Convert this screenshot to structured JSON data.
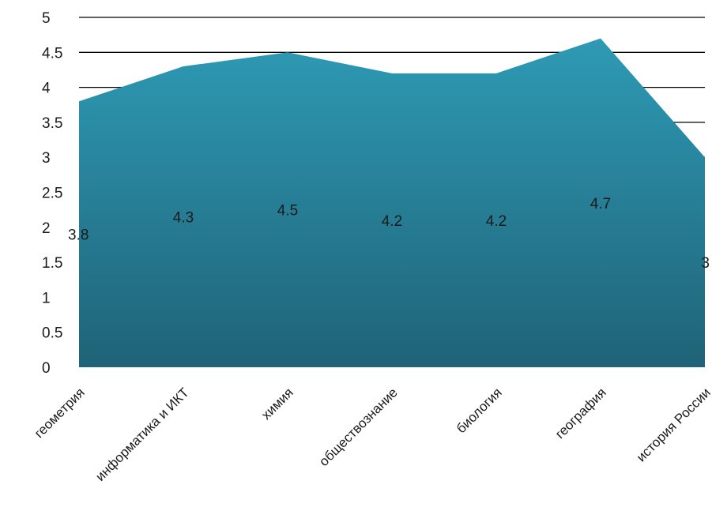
{
  "chart_data": {
    "type": "area",
    "categories": [
      "геометрия",
      "информатика и ИКТ",
      "химия",
      "обществознание",
      "биология",
      "география",
      "история России"
    ],
    "values": [
      3.8,
      4.3,
      4.5,
      4.2,
      4.2,
      4.7,
      3
    ],
    "data_labels": [
      "3.8",
      "4.3",
      "4.5",
      "4.2",
      "4.2",
      "4.7",
      "3"
    ],
    "y_ticks": [
      "0",
      "0.5",
      "1",
      "1.5",
      "2",
      "2.5",
      "3",
      "3.5",
      "4",
      "4.5",
      "5"
    ],
    "ylim": [
      0,
      5
    ],
    "grid": true,
    "legend": "none",
    "colors": {
      "area_top": "#2e9ab5",
      "area_bottom": "#1f6377",
      "grid": "#000000"
    }
  }
}
